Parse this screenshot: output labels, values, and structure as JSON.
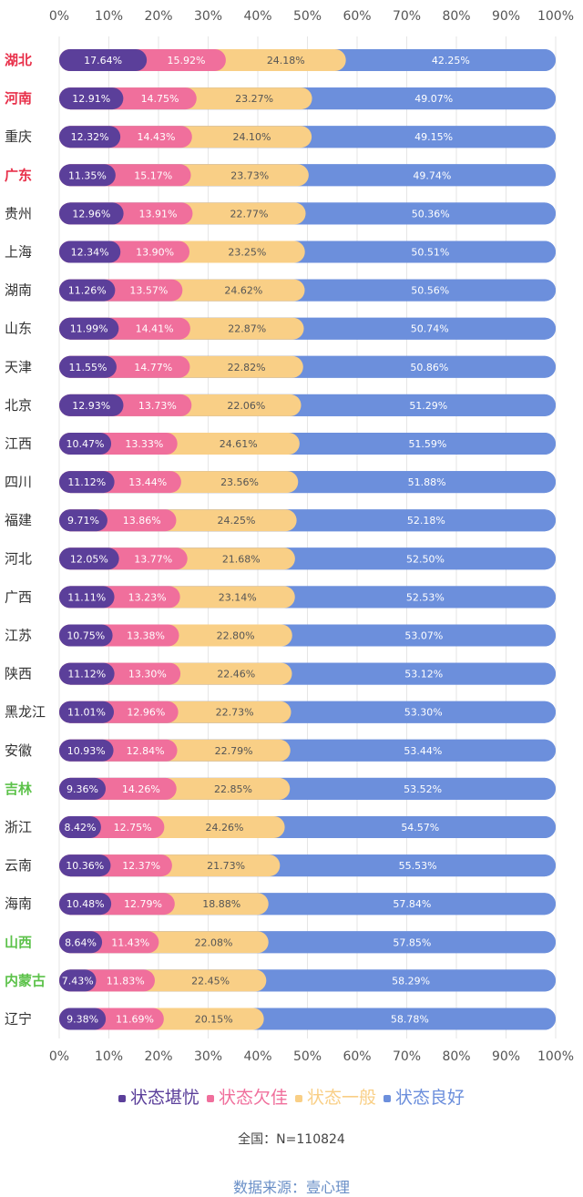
{
  "chart_data": {
    "type": "bar",
    "stacked": true,
    "orientation": "horizontal",
    "xlim": [
      0,
      100
    ],
    "xticks": [
      "0%",
      "10%",
      "20%",
      "30%",
      "40%",
      "50%",
      "60%",
      "70%",
      "80%",
      "90%",
      "100%"
    ],
    "categories": [
      "湖北",
      "河南",
      "重庆",
      "广东",
      "贵州",
      "上海",
      "湖南",
      "山东",
      "天津",
      "北京",
      "江西",
      "四川",
      "福建",
      "河北",
      "广西",
      "江苏",
      "陕西",
      "黑龙江",
      "安徽",
      "吉林",
      "浙江",
      "云南",
      "海南",
      "山西",
      "内蒙古",
      "辽宁"
    ],
    "category_colors": [
      "#e8304a",
      "#e8304a",
      "#333333",
      "#e8304a",
      "#333333",
      "#333333",
      "#333333",
      "#333333",
      "#333333",
      "#333333",
      "#333333",
      "#333333",
      "#333333",
      "#333333",
      "#333333",
      "#333333",
      "#333333",
      "#333333",
      "#333333",
      "#5cc24a",
      "#333333",
      "#333333",
      "#333333",
      "#5cc24a",
      "#5cc24a",
      "#333333"
    ],
    "series": [
      {
        "name": "状态堪忧",
        "color": "#5b3f9a",
        "label_color": "#ffffff",
        "values": [
          17.64,
          12.91,
          12.32,
          11.35,
          12.96,
          12.34,
          11.26,
          11.99,
          11.55,
          12.93,
          10.47,
          11.12,
          9.71,
          12.05,
          11.11,
          10.75,
          11.12,
          11.01,
          10.93,
          9.36,
          8.42,
          10.36,
          10.48,
          8.64,
          7.43,
          9.38
        ]
      },
      {
        "name": "状态欠佳",
        "color": "#f06f9c",
        "label_color": "#ffffff",
        "values": [
          15.92,
          14.75,
          14.43,
          15.17,
          13.91,
          13.9,
          13.57,
          14.41,
          14.77,
          13.73,
          13.33,
          13.44,
          13.86,
          13.77,
          13.23,
          13.38,
          13.3,
          12.96,
          12.84,
          14.26,
          12.75,
          12.37,
          12.79,
          11.43,
          11.83,
          11.69
        ]
      },
      {
        "name": "状态一般",
        "color": "#f9cf86",
        "label_color": "#555555",
        "values": [
          24.18,
          23.27,
          24.1,
          23.73,
          22.77,
          23.25,
          24.62,
          22.87,
          22.82,
          22.06,
          24.61,
          23.56,
          24.25,
          21.68,
          23.14,
          22.8,
          22.46,
          22.73,
          22.79,
          22.85,
          24.26,
          21.73,
          18.88,
          22.08,
          22.45,
          20.15
        ]
      },
      {
        "name": "状态良好",
        "color": "#6c8fdc",
        "label_color": "#ffffff",
        "values": [
          42.25,
          49.07,
          49.15,
          49.74,
          50.36,
          50.51,
          50.56,
          50.74,
          50.86,
          51.29,
          51.59,
          51.88,
          52.18,
          52.5,
          52.53,
          53.07,
          53.12,
          53.3,
          53.44,
          53.52,
          54.57,
          55.53,
          57.84,
          57.85,
          58.29,
          58.78
        ]
      }
    ]
  },
  "legend": [
    {
      "label": "状态堪忧",
      "color": "#5b3f9a"
    },
    {
      "label": "状态欠佳",
      "color": "#f06f9c"
    },
    {
      "label": "状态一般",
      "color": "#f9cf86"
    },
    {
      "label": "状态良好",
      "color": "#6c8fdc"
    }
  ],
  "footer": {
    "sample_size": "全国：N=110824",
    "source": "数据来源：壹心理"
  }
}
